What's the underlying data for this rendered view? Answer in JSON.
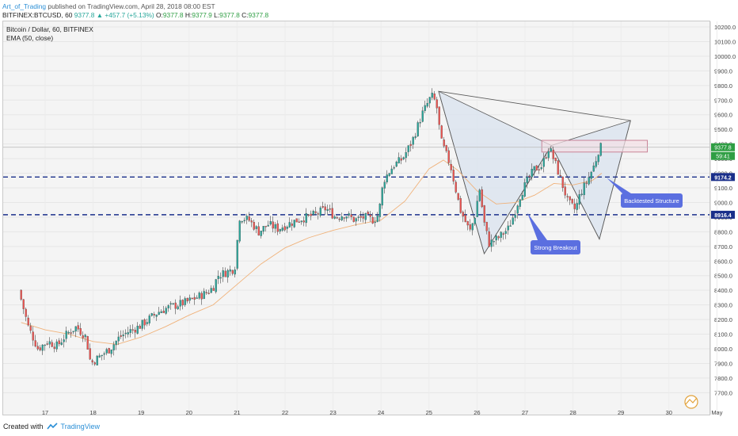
{
  "header": {
    "author": "Art_of_Trading",
    "published_text": "published on TradingView.com, April 28, 2018 08:00 EST"
  },
  "quote": {
    "symbol": "BITFINEX:BTCUSD, 60",
    "last": "9377.8",
    "change": "▲ +457.7 (+5.13%)",
    "open_label": "O:",
    "open": "9377.8",
    "high_label": "H:",
    "high": "9377.9",
    "low_label": "L:",
    "low": "9377.8",
    "close_label": "C:",
    "close": "9377.8"
  },
  "legend": {
    "title": "Bitcoin / Dollar, 60, BITFINEX",
    "indicator": "EMA (50, close)"
  },
  "footer": {
    "created_with": "Created with",
    "brand": "TradingView"
  },
  "colors": {
    "up": "#26a69a",
    "down": "#ef5350",
    "ema": "#f0b27a",
    "level": "#1a2f8a",
    "pattern_fill": "#dbe4ef",
    "pattern_line": "#5a5a5a",
    "callout": "#5b6fe0",
    "resistance_fill": "#f4dfe6",
    "resistance_line": "#c98397"
  },
  "chart_data": {
    "type": "candlestick",
    "interval": "60",
    "x_tick_labels": [
      "17",
      "18",
      "19",
      "20",
      "21",
      "22",
      "23",
      "24",
      "25",
      "26",
      "27",
      "28",
      "29",
      "30",
      "May"
    ],
    "y_ticks": [
      7700,
      7800,
      7900,
      8000,
      8100,
      8200,
      8300,
      8400,
      8500,
      8600,
      8700,
      8800,
      8900,
      9000,
      9100,
      9200,
      9300,
      9400,
      9500,
      9600,
      9700,
      9800,
      9900,
      10000,
      10100,
      10200
    ],
    "y_tick_labels": [
      "7700.0",
      "7800.0",
      "7900.0",
      "8000.0",
      "8100.0",
      "8200.0",
      "8300.0",
      "8400.0",
      "8500.0",
      "8600.0",
      "8700.0",
      "8800.0",
      "8900.0",
      "9000.0",
      "9100.0",
      "9200.0",
      "9300.0",
      "9400.0",
      "9500.0",
      "9600.0",
      "9700.0",
      "9800.0",
      "9900.0",
      "10000.0",
      "10100.0",
      "10200.0"
    ],
    "ylim": [
      7600,
      10250
    ],
    "price_path": [
      [
        16.5,
        8400
      ],
      [
        16.7,
        8150
      ],
      [
        16.9,
        8000
      ],
      [
        17.1,
        8050
      ],
      [
        17.3,
        8020
      ],
      [
        17.5,
        8100
      ],
      [
        17.7,
        8150
      ],
      [
        17.9,
        8080
      ],
      [
        18.0,
        7900
      ],
      [
        18.2,
        7950
      ],
      [
        18.4,
        8000
      ],
      [
        18.6,
        8080
      ],
      [
        18.8,
        8120
      ],
      [
        19.0,
        8150
      ],
      [
        19.2,
        8200
      ],
      [
        19.4,
        8250
      ],
      [
        19.6,
        8280
      ],
      [
        19.8,
        8300
      ],
      [
        20.0,
        8320
      ],
      [
        20.2,
        8350
      ],
      [
        20.4,
        8380
      ],
      [
        20.55,
        8420
      ],
      [
        20.65,
        8500
      ],
      [
        20.8,
        8520
      ],
      [
        21.0,
        8550
      ],
      [
        21.1,
        8900
      ],
      [
        21.3,
        8880
      ],
      [
        21.5,
        8800
      ],
      [
        21.7,
        8850
      ],
      [
        21.9,
        8820
      ],
      [
        22.1,
        8850
      ],
      [
        22.3,
        8880
      ],
      [
        22.5,
        8900
      ],
      [
        22.7,
        8920
      ],
      [
        22.9,
        8960
      ],
      [
        23.1,
        8900
      ],
      [
        23.3,
        8920
      ],
      [
        23.5,
        8880
      ],
      [
        23.7,
        8900
      ],
      [
        23.9,
        8880
      ],
      [
        24.0,
        8920
      ],
      [
        24.1,
        9150
      ],
      [
        24.3,
        9250
      ],
      [
        24.5,
        9300
      ],
      [
        24.7,
        9420
      ],
      [
        24.9,
        9600
      ],
      [
        25.1,
        9730
      ],
      [
        25.2,
        9680
      ],
      [
        25.3,
        9420
      ],
      [
        25.5,
        9250
      ],
      [
        25.7,
        8950
      ],
      [
        25.9,
        8800
      ],
      [
        26.0,
        8900
      ],
      [
        26.1,
        9100
      ],
      [
        26.2,
        8860
      ],
      [
        26.3,
        8720
      ],
      [
        26.5,
        8760
      ],
      [
        26.7,
        8820
      ],
      [
        26.8,
        8900
      ],
      [
        26.95,
        9050
      ],
      [
        27.1,
        9150
      ],
      [
        27.25,
        9230
      ],
      [
        27.4,
        9250
      ],
      [
        27.55,
        9380
      ],
      [
        27.7,
        9250
      ],
      [
        27.85,
        9100
      ],
      [
        27.95,
        9000
      ],
      [
        28.1,
        8950
      ],
      [
        28.2,
        9060
      ],
      [
        28.35,
        9150
      ],
      [
        28.5,
        9260
      ],
      [
        28.6,
        9377.8
      ]
    ],
    "ema_path": [
      [
        16.5,
        8180
      ],
      [
        17.0,
        8130
      ],
      [
        17.5,
        8100
      ],
      [
        18.0,
        8050
      ],
      [
        18.5,
        8030
      ],
      [
        19.0,
        8080
      ],
      [
        19.5,
        8150
      ],
      [
        20.0,
        8230
      ],
      [
        20.5,
        8300
      ],
      [
        21.0,
        8440
      ],
      [
        21.5,
        8580
      ],
      [
        22.0,
        8690
      ],
      [
        22.5,
        8760
      ],
      [
        23.0,
        8810
      ],
      [
        23.5,
        8850
      ],
      [
        24.0,
        8880
      ],
      [
        24.5,
        9010
      ],
      [
        25.0,
        9230
      ],
      [
        25.3,
        9290
      ],
      [
        25.6,
        9220
      ],
      [
        26.0,
        9080
      ],
      [
        26.4,
        8990
      ],
      [
        26.8,
        9000
      ],
      [
        27.2,
        9050
      ],
      [
        27.6,
        9130
      ],
      [
        28.0,
        9120
      ],
      [
        28.4,
        9150
      ],
      [
        28.6,
        9200
      ]
    ],
    "harmonic_pattern": {
      "shape": "bearish crab/bat (XABCD) with two shaded triangles",
      "points": [
        [
          25.2,
          9760
        ],
        [
          26.15,
          8650
        ],
        [
          27.55,
          9390
        ],
        [
          28.55,
          8750
        ],
        [
          29.2,
          9560
        ]
      ]
    },
    "resistance_zone": {
      "from": 9345,
      "to": 9425,
      "x_start": 27.35,
      "x_end": 29.55
    },
    "levels": [
      {
        "price": 9174.2,
        "label": "9174.2",
        "style": "dashed"
      },
      {
        "price": 8916.4,
        "label": "8916.4",
        "style": "dashed"
      }
    ],
    "last_price_label": "9377.8",
    "countdown_label": "59:41",
    "annotations": [
      {
        "text": "Backtested Structure",
        "anchor": [
          28.7,
          9170
        ]
      },
      {
        "text": "Strong Breakout",
        "anchor": [
          27.05,
          8930
        ]
      }
    ]
  }
}
